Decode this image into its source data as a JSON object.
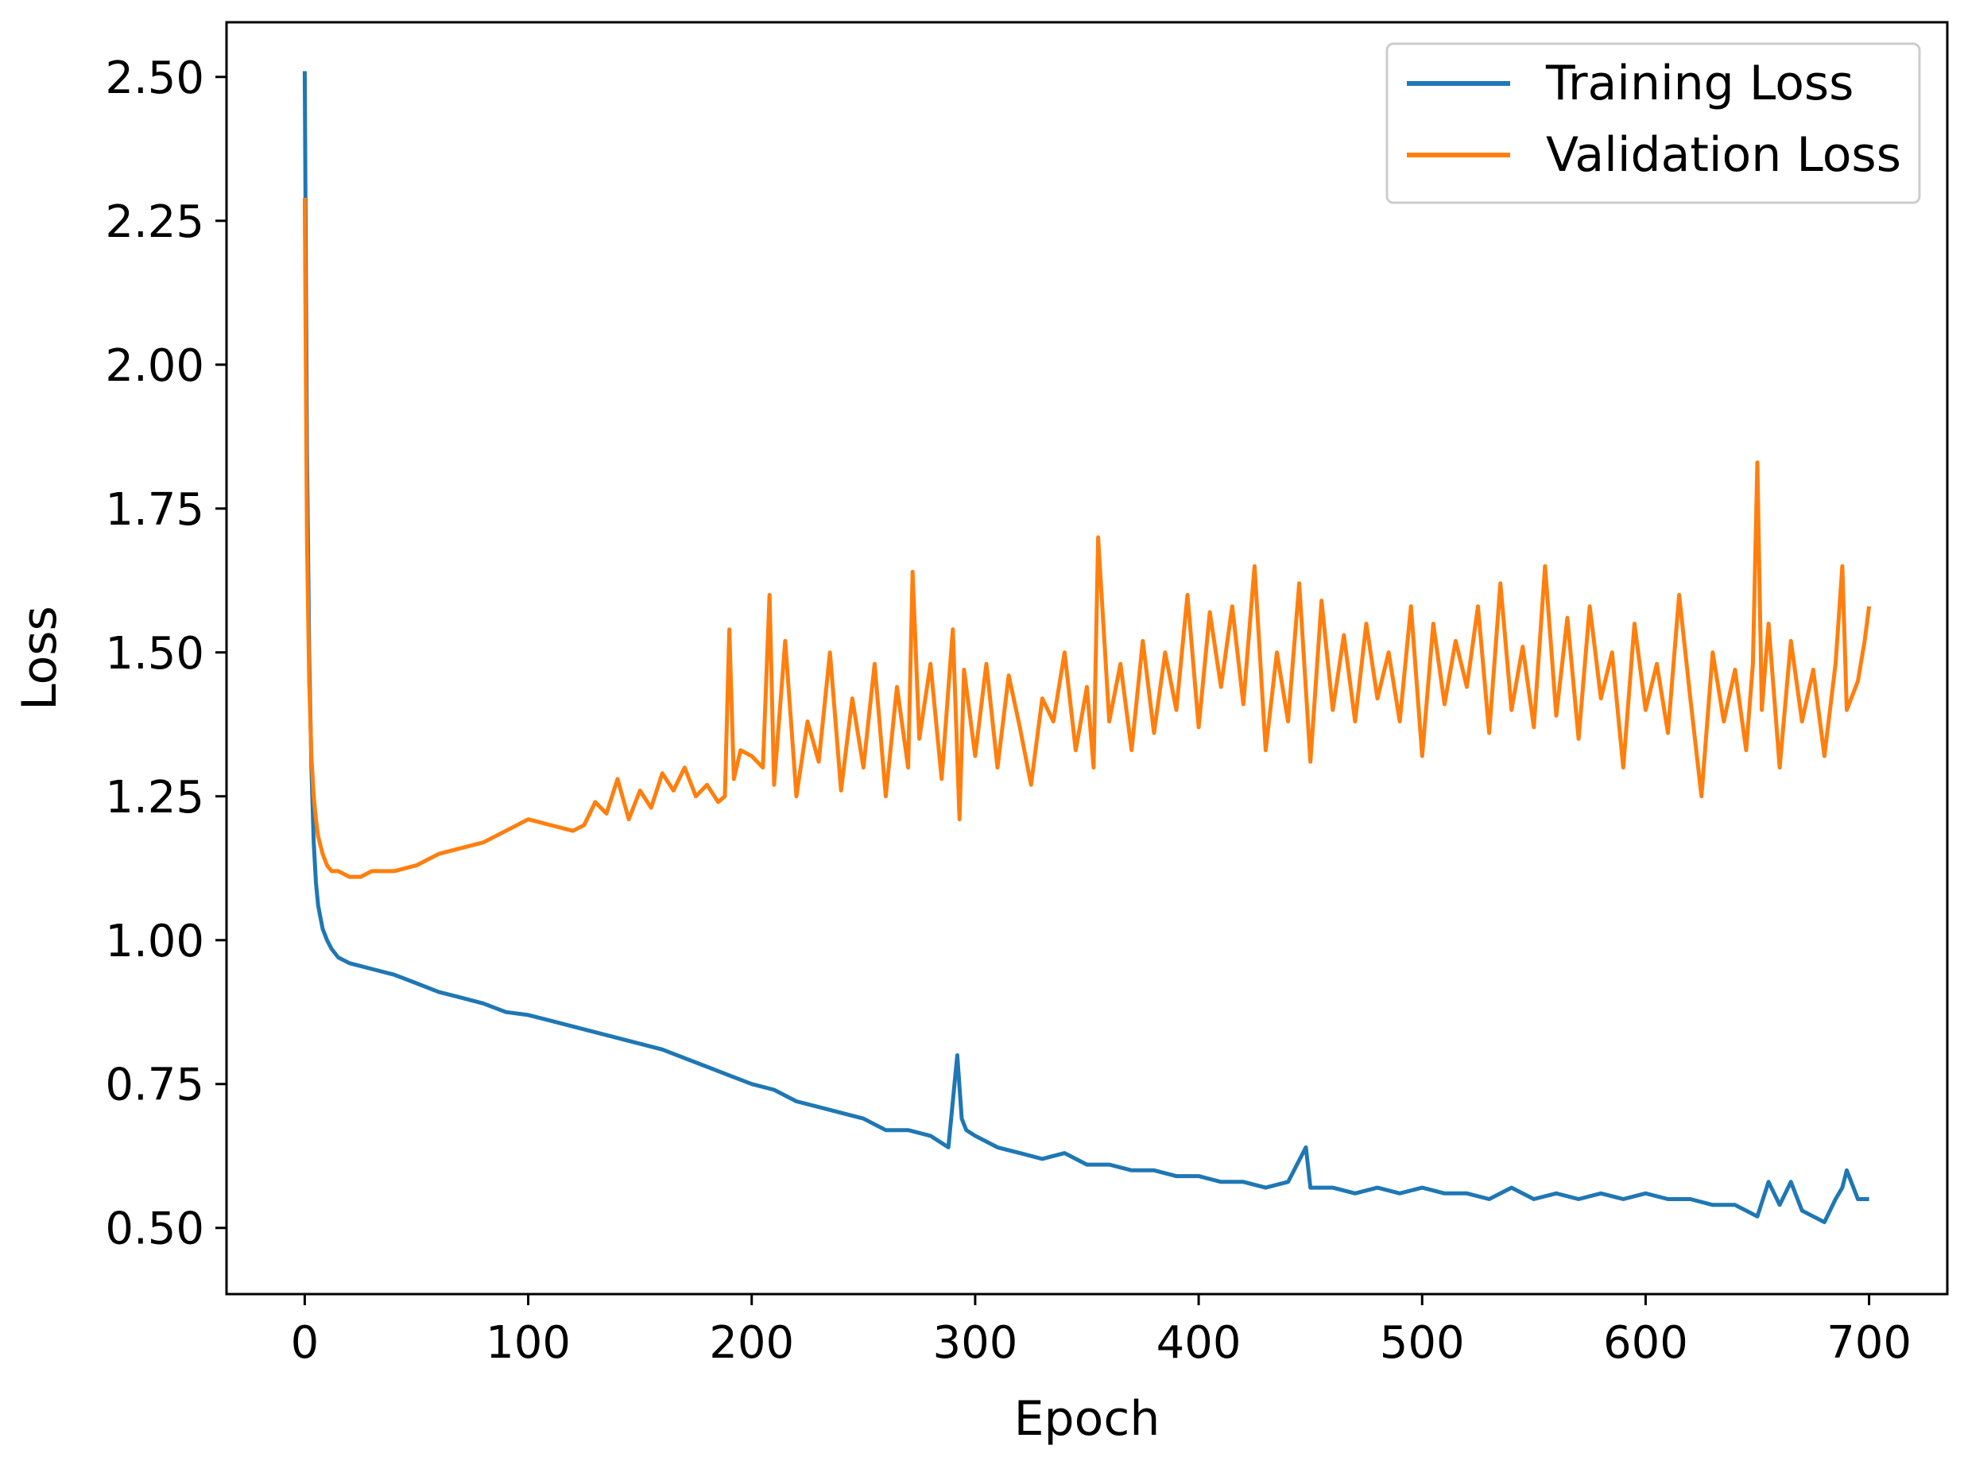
{
  "chart_data": {
    "type": "line",
    "xlabel": "Epoch",
    "ylabel": "Loss",
    "xlim": [
      -35,
      735
    ],
    "ylim": [
      0.385,
      2.595
    ],
    "xticks": [
      0,
      100,
      200,
      300,
      400,
      500,
      600,
      700
    ],
    "xtick_labels": [
      "0",
      "100",
      "200",
      "300",
      "400",
      "500",
      "600",
      "700"
    ],
    "yticks": [
      0.5,
      0.75,
      1.0,
      1.25,
      1.5,
      1.75,
      2.0,
      2.25,
      2.5
    ],
    "ytick_labels": [
      "0.50",
      "0.75",
      "1.00",
      "1.25",
      "1.50",
      "1.75",
      "2.00",
      "2.25",
      "2.50"
    ],
    "grid": false,
    "legend_position": "top-right",
    "series": [
      {
        "name": "Training Loss",
        "color": "#1f77b4",
        "x": [
          0,
          1,
          2,
          3,
          4,
          5,
          6,
          8,
          10,
          12,
          15,
          20,
          25,
          30,
          40,
          50,
          60,
          70,
          80,
          90,
          100,
          110,
          120,
          130,
          140,
          150,
          160,
          170,
          180,
          190,
          200,
          210,
          220,
          230,
          240,
          250,
          260,
          270,
          280,
          288,
          292,
          294,
          296,
          300,
          310,
          320,
          330,
          340,
          350,
          360,
          370,
          380,
          390,
          400,
          410,
          420,
          430,
          440,
          448,
          450,
          460,
          470,
          480,
          490,
          500,
          510,
          520,
          530,
          540,
          550,
          560,
          570,
          580,
          590,
          600,
          610,
          620,
          630,
          640,
          645,
          650,
          655,
          660,
          665,
          670,
          675,
          680,
          685,
          688,
          690,
          695,
          700
        ],
        "y": [
          2.51,
          1.85,
          1.5,
          1.3,
          1.17,
          1.1,
          1.06,
          1.02,
          1.0,
          0.985,
          0.97,
          0.96,
          0.955,
          0.95,
          0.94,
          0.925,
          0.91,
          0.9,
          0.89,
          0.875,
          0.87,
          0.86,
          0.85,
          0.84,
          0.83,
          0.82,
          0.81,
          0.795,
          0.78,
          0.765,
          0.75,
          0.74,
          0.72,
          0.71,
          0.7,
          0.69,
          0.67,
          0.67,
          0.66,
          0.64,
          0.8,
          0.69,
          0.67,
          0.66,
          0.64,
          0.63,
          0.62,
          0.63,
          0.61,
          0.61,
          0.6,
          0.6,
          0.59,
          0.59,
          0.58,
          0.58,
          0.57,
          0.58,
          0.64,
          0.57,
          0.57,
          0.56,
          0.57,
          0.56,
          0.57,
          0.56,
          0.56,
          0.55,
          0.57,
          0.55,
          0.56,
          0.55,
          0.56,
          0.55,
          0.56,
          0.55,
          0.55,
          0.54,
          0.54,
          0.53,
          0.52,
          0.58,
          0.54,
          0.58,
          0.53,
          0.52,
          0.51,
          0.55,
          0.57,
          0.6,
          0.55,
          0.55
        ]
      },
      {
        "name": "Validation Loss",
        "color": "#ff7f0e",
        "x": [
          0,
          1,
          2,
          3,
          4,
          5,
          6,
          8,
          10,
          12,
          15,
          20,
          25,
          30,
          40,
          50,
          60,
          70,
          80,
          90,
          100,
          110,
          120,
          125,
          130,
          135,
          140,
          145,
          150,
          155,
          160,
          165,
          170,
          175,
          180,
          185,
          188,
          190,
          192,
          195,
          200,
          205,
          208,
          210,
          215,
          220,
          225,
          230,
          235,
          240,
          245,
          250,
          255,
          260,
          265,
          270,
          272,
          275,
          280,
          285,
          290,
          293,
          295,
          300,
          305,
          310,
          315,
          320,
          325,
          330,
          335,
          340,
          345,
          350,
          353,
          355,
          360,
          365,
          370,
          375,
          380,
          385,
          390,
          395,
          400,
          405,
          410,
          415,
          420,
          425,
          430,
          435,
          440,
          445,
          450,
          455,
          460,
          465,
          470,
          475,
          480,
          485,
          490,
          495,
          500,
          505,
          510,
          515,
          520,
          525,
          530,
          535,
          540,
          545,
          550,
          555,
          560,
          565,
          570,
          575,
          580,
          585,
          590,
          595,
          600,
          605,
          610,
          615,
          620,
          625,
          630,
          635,
          640,
          645,
          648,
          650,
          652,
          655,
          660,
          665,
          670,
          675,
          680,
          685,
          688,
          690,
          695,
          698,
          700
        ],
        "y": [
          2.29,
          1.7,
          1.45,
          1.32,
          1.25,
          1.21,
          1.18,
          1.15,
          1.13,
          1.12,
          1.12,
          1.11,
          1.11,
          1.12,
          1.12,
          1.13,
          1.15,
          1.16,
          1.17,
          1.19,
          1.21,
          1.2,
          1.19,
          1.2,
          1.24,
          1.22,
          1.28,
          1.21,
          1.26,
          1.23,
          1.29,
          1.26,
          1.3,
          1.25,
          1.27,
          1.24,
          1.25,
          1.54,
          1.28,
          1.33,
          1.32,
          1.3,
          1.6,
          1.27,
          1.52,
          1.25,
          1.38,
          1.31,
          1.5,
          1.26,
          1.42,
          1.3,
          1.48,
          1.25,
          1.44,
          1.3,
          1.64,
          1.35,
          1.48,
          1.28,
          1.54,
          1.21,
          1.47,
          1.32,
          1.48,
          1.3,
          1.46,
          1.37,
          1.27,
          1.42,
          1.38,
          1.5,
          1.33,
          1.44,
          1.3,
          1.7,
          1.38,
          1.48,
          1.33,
          1.52,
          1.36,
          1.5,
          1.4,
          1.6,
          1.37,
          1.57,
          1.44,
          1.58,
          1.41,
          1.65,
          1.33,
          1.5,
          1.38,
          1.62,
          1.31,
          1.59,
          1.4,
          1.53,
          1.38,
          1.55,
          1.42,
          1.5,
          1.38,
          1.58,
          1.32,
          1.55,
          1.41,
          1.52,
          1.44,
          1.58,
          1.36,
          1.62,
          1.4,
          1.51,
          1.37,
          1.65,
          1.39,
          1.56,
          1.35,
          1.58,
          1.42,
          1.5,
          1.3,
          1.55,
          1.4,
          1.48,
          1.36,
          1.6,
          1.42,
          1.25,
          1.5,
          1.38,
          1.47,
          1.33,
          1.48,
          1.83,
          1.4,
          1.55,
          1.3,
          1.52,
          1.38,
          1.47,
          1.32,
          1.48,
          1.65,
          1.4,
          1.45,
          1.52,
          1.58
        ]
      }
    ]
  }
}
